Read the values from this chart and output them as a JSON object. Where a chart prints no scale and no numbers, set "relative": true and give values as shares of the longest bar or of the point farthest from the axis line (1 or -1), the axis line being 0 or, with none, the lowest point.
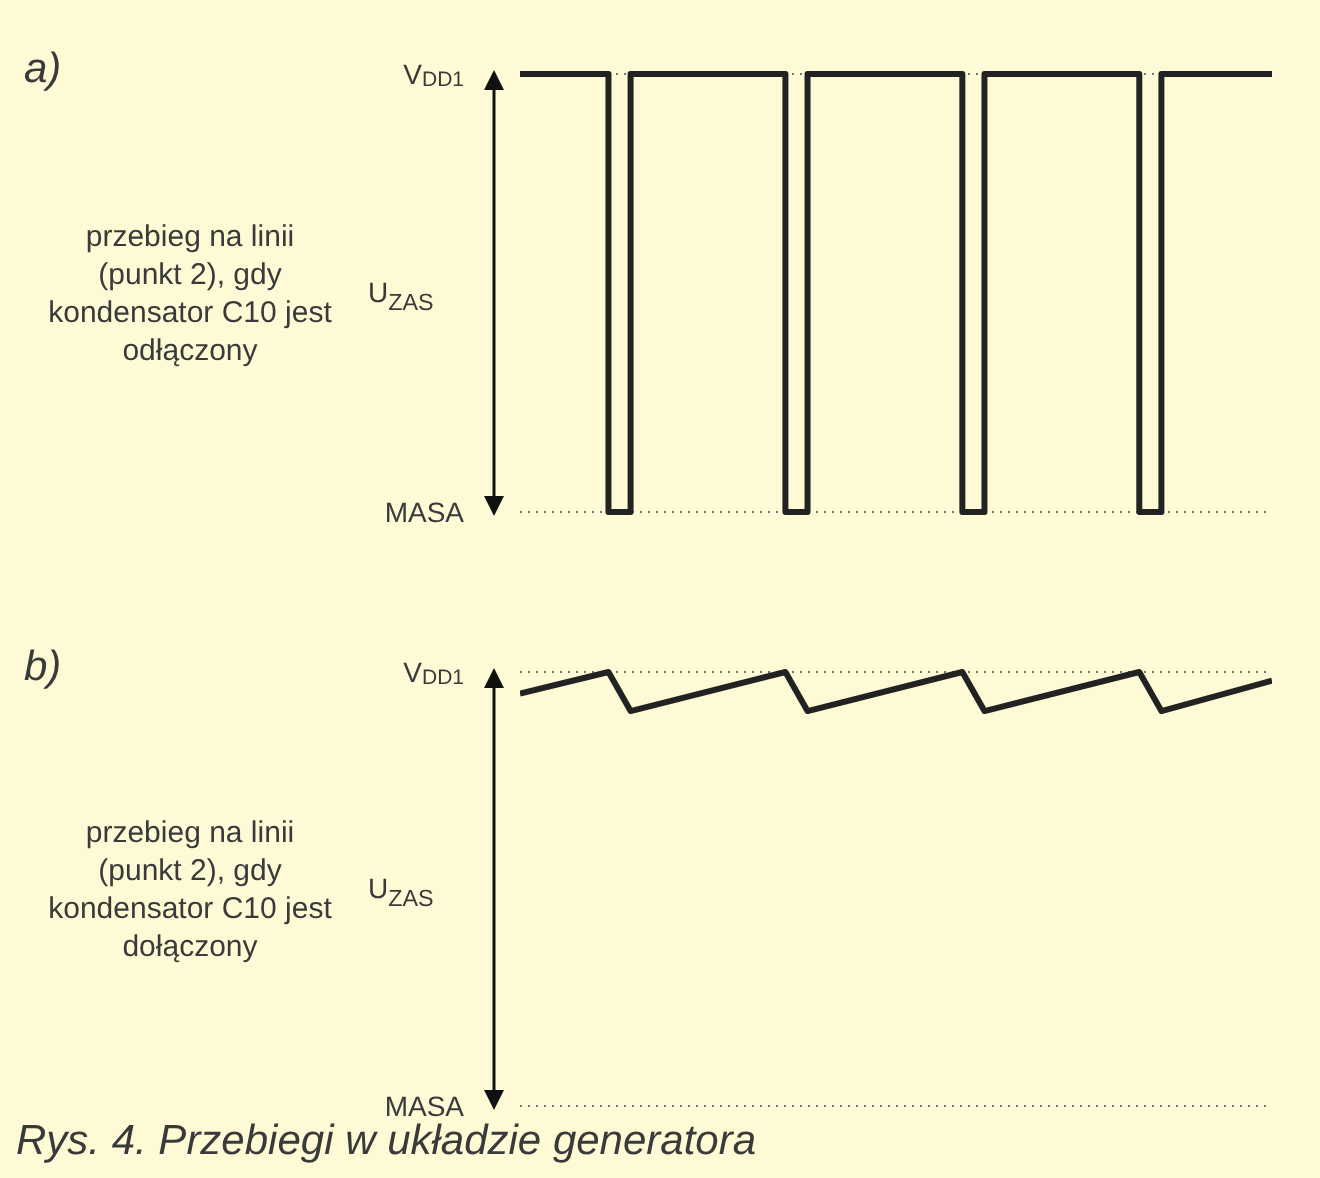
{
  "chart_data": [
    {
      "type": "step",
      "ylabel": "U$_{ZAS}$",
      "annotations": [
        "a)",
        "przebieg na linii (punkt 2), gdy kondensator C10 jest odłączony"
      ],
      "categories": [
        null,
        null,
        null,
        null,
        null,
        null,
        null,
        null,
        null,
        null,
        null,
        null,
        null,
        null,
        null,
        null,
        null,
        null,
        null,
        null,
        null,
        null,
        null,
        null,
        null,
        null,
        null,
        null,
        null,
        null,
        null,
        null,
        null,
        null,
        null
      ],
      "values": [
        1,
        1,
        1,
        1,
        0,
        1,
        1,
        1,
        1,
        1,
        1,
        1,
        0,
        1,
        1,
        1,
        1,
        1,
        1,
        1,
        0,
        1,
        1,
        1,
        1,
        1,
        1,
        1,
        0,
        1,
        1,
        1,
        1,
        1,
        1
      ],
      "color": "#222222",
      "relative": true,
      "ref_lines": [
        {
          "axis": "y",
          "value": 1,
          "label": "V$_{DD1}$",
          "line_style": "dotted",
          "color": "#777777"
        },
        {
          "axis": "y",
          "value": 0,
          "label": "MASA",
          "line_style": "dotted",
          "color": "#777777"
        }
      ]
    },
    {
      "type": "line",
      "ylabel": "U$_{ZAS}$",
      "annotations": [
        "b)",
        "przebieg na linii (punkt 2), gdy kondensator C10 jest dołączony",
        "Rys. 4. Przebiegi w układzie generatora"
      ],
      "categories": [
        null,
        null,
        null,
        null,
        null,
        null,
        null,
        null,
        null,
        null,
        null,
        null,
        null,
        null,
        null,
        null,
        null,
        null,
        null,
        null,
        null,
        null,
        null,
        null,
        null,
        null,
        null,
        null,
        null,
        null,
        null,
        null,
        null,
        null,
        null
      ],
      "values": [
        0.95,
        null,
        null,
        null,
        1,
        0.91,
        null,
        null,
        null,
        null,
        null,
        null,
        1,
        0.91,
        null,
        null,
        null,
        null,
        null,
        null,
        1,
        0.91,
        null,
        null,
        null,
        null,
        null,
        null,
        1,
        0.91,
        null,
        null,
        null,
        null,
        0.98
      ],
      "color": "#222222",
      "relative": true,
      "ref_lines": [
        {
          "axis": "y",
          "value": 1,
          "label": "V$_{DD1}$",
          "line_style": "dotted",
          "color": "#777777"
        },
        {
          "axis": "y",
          "value": 0,
          "label": "MASA",
          "line_style": "dotted",
          "color": "#777777"
        }
      ]
    }
  ]
}
